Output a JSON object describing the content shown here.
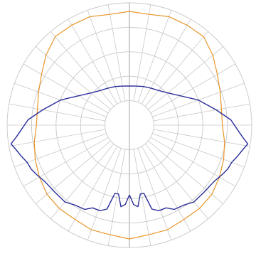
{
  "chart_data": {
    "type": "polar-line",
    "angle_unit": "degrees",
    "angle_zero": "bottom",
    "angle_direction": "clockwise",
    "radial_max": 5,
    "radial_rings": [
      1,
      2,
      3,
      4,
      5
    ],
    "angular_grid_step": 10,
    "grid": true,
    "colors": {
      "grid": "#c8c8c8",
      "series1": "#e8962a",
      "series2": "#2a2f9a"
    },
    "series": [
      {
        "id": "orange",
        "points": [
          [
            0,
            4.65
          ],
          [
            10,
            4.55
          ],
          [
            20,
            4.55
          ],
          [
            30,
            4.45
          ],
          [
            40,
            4.45
          ],
          [
            50,
            4.4
          ],
          [
            60,
            4.25
          ],
          [
            70,
            4.1
          ],
          [
            80,
            3.95
          ],
          [
            90,
            3.8
          ],
          [
            100,
            3.82
          ],
          [
            110,
            3.95
          ],
          [
            120,
            4.15
          ],
          [
            130,
            4.45
          ],
          [
            140,
            4.72
          ],
          [
            150,
            4.72
          ],
          [
            160,
            4.72
          ],
          [
            170,
            4.6
          ],
          [
            180,
            4.65
          ],
          [
            190,
            4.6
          ],
          [
            200,
            4.72
          ],
          [
            210,
            4.72
          ],
          [
            220,
            4.72
          ],
          [
            230,
            4.45
          ],
          [
            240,
            4.15
          ],
          [
            250,
            3.95
          ],
          [
            260,
            3.82
          ],
          [
            270,
            3.8
          ],
          [
            280,
            3.95
          ],
          [
            290,
            4.1
          ],
          [
            300,
            4.25
          ],
          [
            310,
            4.4
          ],
          [
            320,
            4.45
          ],
          [
            330,
            4.45
          ],
          [
            340,
            4.55
          ],
          [
            350,
            4.55
          ],
          [
            360,
            4.65
          ]
        ]
      },
      {
        "id": "blue",
        "points": [
          [
            0,
            2.85
          ],
          [
            3,
            3.25
          ],
          [
            6,
            3.35
          ],
          [
            9,
            2.85
          ],
          [
            12,
            2.85
          ],
          [
            15,
            3.55
          ],
          [
            19,
            3.7
          ],
          [
            24,
            3.7
          ],
          [
            28,
            3.9
          ],
          [
            34,
            3.95
          ],
          [
            40,
            4.1
          ],
          [
            48,
            4.1
          ],
          [
            56,
            4.15
          ],
          [
            62,
            4.3
          ],
          [
            66,
            4.4
          ],
          [
            70,
            4.45
          ],
          [
            74,
            4.6
          ],
          [
            78,
            4.75
          ],
          [
            81,
            4.9
          ],
          [
            84,
            4.65
          ],
          [
            88,
            4.4
          ],
          [
            93,
            4.15
          ],
          [
            100,
            3.6
          ],
          [
            110,
            3.0
          ],
          [
            120,
            2.4
          ],
          [
            130,
            2.05
          ],
          [
            140,
            1.85
          ],
          [
            150,
            1.75
          ],
          [
            160,
            1.68
          ],
          [
            170,
            1.62
          ],
          [
            180,
            1.6
          ],
          [
            190,
            1.62
          ],
          [
            200,
            1.68
          ],
          [
            210,
            1.75
          ],
          [
            220,
            1.85
          ],
          [
            230,
            2.05
          ],
          [
            240,
            2.4
          ],
          [
            250,
            3.0
          ],
          [
            260,
            3.6
          ],
          [
            267,
            4.15
          ],
          [
            272,
            4.4
          ],
          [
            276,
            4.65
          ],
          [
            279,
            4.9
          ],
          [
            282,
            4.75
          ],
          [
            286,
            4.6
          ],
          [
            290,
            4.45
          ],
          [
            294,
            4.4
          ],
          [
            298,
            4.3
          ],
          [
            304,
            4.15
          ],
          [
            312,
            4.1
          ],
          [
            320,
            4.1
          ],
          [
            326,
            3.95
          ],
          [
            332,
            3.9
          ],
          [
            336,
            3.7
          ],
          [
            341,
            3.7
          ],
          [
            345,
            3.55
          ],
          [
            348,
            2.85
          ],
          [
            351,
            2.85
          ],
          [
            354,
            3.35
          ],
          [
            357,
            3.25
          ],
          [
            360,
            2.85
          ]
        ]
      }
    ]
  }
}
